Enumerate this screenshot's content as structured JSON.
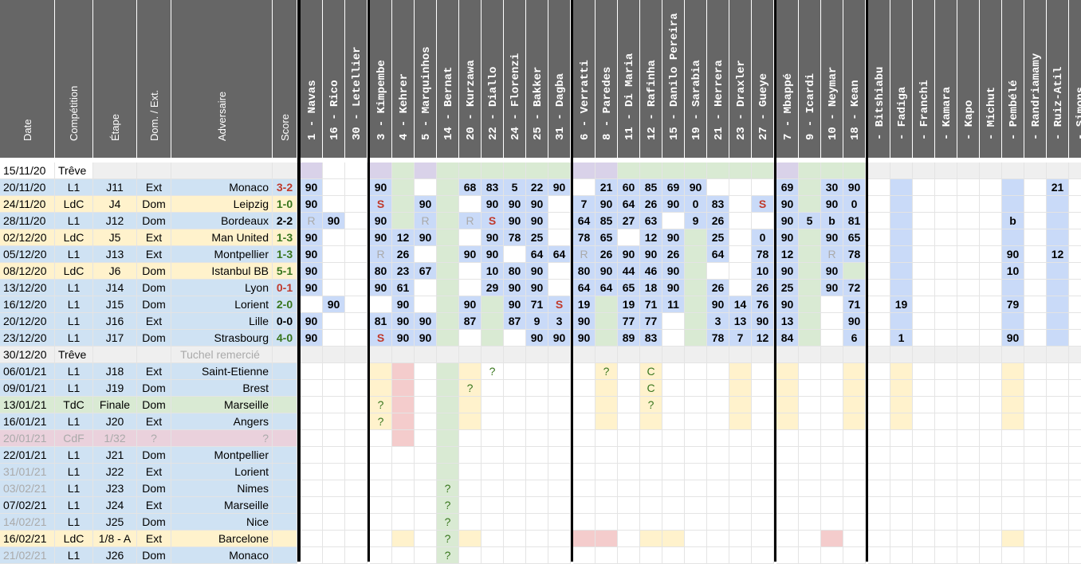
{
  "headers": {
    "info": [
      "Date",
      "Compétition",
      "Étape",
      "Dom. / Ext.",
      "Adversaire",
      "Score"
    ],
    "players": [
      "1 - Navas",
      "16 - Rico",
      "30 - Letellier",
      "3 - Kimpembe",
      "4 - Kehrer",
      "5 - Marquinhos",
      "14 - Bernat",
      "20 - Kurzawa",
      "22 - Diallo",
      "24 - Florenzi",
      "25 - Bakker",
      "31 - Dagba",
      "6 - Verratti",
      "8 - Paredes",
      "11 - Di Maria",
      "12 - Rafinha",
      "15 - Danilo Pereira",
      "19 - Sarabia",
      "21 - Herrera",
      "23 - Draxler",
      "27 - Gueye",
      "7 - Mbappé",
      "9 - Icardi",
      "10 - Neymar",
      "18 - Kean",
      "- Bitshiabu",
      "- Fadiga",
      "- Franchi",
      "- Kamara",
      "- Kapo",
      "- Michut",
      "- Pembélé",
      "- Randriamamy",
      "- Ruiz-Atil",
      "- Simons"
    ]
  },
  "colors": {
    "header_bg": "#666666",
    "blue": "#c9daf8",
    "lightblue": "#cfe2f3",
    "green": "#d9ead3",
    "yellow": "#fff2cc",
    "pink": "#ead1dc",
    "purple": "#d9d2e9",
    "red": "#f4cccc",
    "gray": "#efefef",
    "text_red": "#c0392b",
    "text_green": "#38761d",
    "text_yellow": "#ffd966",
    "text_gray": "#aaaaaa"
  },
  "rows": [
    {
      "date": "15/11/20",
      "comp": "Trêve",
      "stage": "",
      "home": "",
      "opp": "",
      "score": "",
      "style": "treve1"
    },
    {
      "date": "20/11/20",
      "comp": "L1",
      "stage": "J11",
      "home": "Ext",
      "opp": "Monaco",
      "score": "3-2",
      "score_color": "red",
      "style": "l1"
    },
    {
      "date": "24/11/20",
      "comp": "LdC",
      "stage": "J4",
      "home": "Dom",
      "opp": "Leipzig",
      "score": "1-0",
      "score_color": "green",
      "style": "ldc"
    },
    {
      "date": "28/11/20",
      "comp": "L1",
      "stage": "J12",
      "home": "Dom",
      "opp": "Bordeaux",
      "score": "2-2",
      "score_color": "black",
      "style": "l1"
    },
    {
      "date": "02/12/20",
      "comp": "LdC",
      "stage": "J5",
      "home": "Ext",
      "opp": "Man United",
      "score": "1-3",
      "score_color": "green",
      "style": "ldc"
    },
    {
      "date": "05/12/20",
      "comp": "L1",
      "stage": "J13",
      "home": "Ext",
      "opp": "Montpellier",
      "score": "1-3",
      "score_color": "green",
      "style": "l1"
    },
    {
      "date": "08/12/20",
      "comp": "LdC",
      "stage": "J6",
      "home": "Dom",
      "opp": "Istanbul BB",
      "score": "5-1",
      "score_color": "green",
      "style": "ldc"
    },
    {
      "date": "13/12/20",
      "comp": "L1",
      "stage": "J14",
      "home": "Dom",
      "opp": "Lyon",
      "score": "0-1",
      "score_color": "red",
      "style": "l1"
    },
    {
      "date": "16/12/20",
      "comp": "L1",
      "stage": "J15",
      "home": "Dom",
      "opp": "Lorient",
      "score": "2-0",
      "score_color": "green",
      "style": "l1"
    },
    {
      "date": "20/12/20",
      "comp": "L1",
      "stage": "J16",
      "home": "Ext",
      "opp": "Lille",
      "score": "0-0",
      "score_color": "black",
      "style": "l1"
    },
    {
      "date": "23/12/20",
      "comp": "L1",
      "stage": "J17",
      "home": "Dom",
      "opp": "Strasbourg",
      "score": "4-0",
      "score_color": "green",
      "style": "l1"
    },
    {
      "date": "30/12/20",
      "comp": "Trêve",
      "stage": "",
      "home": "",
      "opp": "Tuchel remercié",
      "score": "",
      "style": "treve2"
    },
    {
      "date": "06/01/21",
      "comp": "L1",
      "stage": "J18",
      "home": "Ext",
      "opp": "Saint-Etienne",
      "score": "",
      "style": "l1"
    },
    {
      "date": "09/01/21",
      "comp": "L1",
      "stage": "J19",
      "home": "Dom",
      "opp": "Brest",
      "score": "",
      "style": "l1"
    },
    {
      "date": "13/01/21",
      "comp": "TdC",
      "stage": "Finale",
      "home": "Dom",
      "opp": "Marseille",
      "score": "",
      "style": "tdc"
    },
    {
      "date": "16/01/21",
      "comp": "L1",
      "stage": "J20",
      "home": "Ext",
      "opp": "Angers",
      "score": "",
      "style": "l1"
    },
    {
      "date": "20/01/21",
      "comp": "CdF",
      "stage": "1/32",
      "home": "?",
      "opp": "?",
      "score": "",
      "style": "cdf"
    },
    {
      "date": "22/01/21",
      "comp": "L1",
      "stage": "J21",
      "home": "Dom",
      "opp": "Montpellier",
      "score": "",
      "style": "l1"
    },
    {
      "date": "31/01/21",
      "comp": "L1",
      "stage": "J22",
      "home": "Ext",
      "opp": "Lorient",
      "score": "",
      "style": "l1",
      "date_gray": true
    },
    {
      "date": "03/02/21",
      "comp": "L1",
      "stage": "J23",
      "home": "Dom",
      "opp": "Nimes",
      "score": "",
      "style": "l1",
      "date_gray": true
    },
    {
      "date": "07/02/21",
      "comp": "L1",
      "stage": "J24",
      "home": "Ext",
      "opp": "Marseille",
      "score": "",
      "style": "l1"
    },
    {
      "date": "14/02/21",
      "comp": "L1",
      "stage": "J25",
      "home": "Dom",
      "opp": "Nice",
      "score": "",
      "style": "l1",
      "date_gray": true
    },
    {
      "date": "16/02/21",
      "comp": "LdC",
      "stage": "1/8 - A",
      "home": "Ext",
      "opp": "Barcelone",
      "score": "",
      "style": "ldc"
    },
    {
      "date": "21/02/21",
      "comp": "L1",
      "stage": "J26",
      "home": "Dom",
      "opp": "Monaco",
      "score": "",
      "style": "l1",
      "date_gray": true
    }
  ],
  "player_cells": [
    [
      "",
      "",
      "",
      "",
      "",
      "",
      "",
      "",
      "",
      "",
      "",
      "",
      "",
      "",
      "",
      "",
      "",
      "",
      "",
      "",
      "",
      "",
      "",
      "",
      "",
      "",
      "",
      "",
      "",
      "",
      "",
      "",
      "",
      "",
      ""
    ],
    [
      "90",
      "",
      "",
      "90",
      "",
      "",
      "",
      "68",
      "83",
      "5",
      "22",
      "90",
      "",
      "21",
      "60",
      "85",
      "69",
      "90",
      "",
      "",
      "",
      "69",
      "",
      "30",
      "90",
      "",
      "",
      "",
      "",
      "",
      "",
      "",
      "",
      "21",
      ""
    ],
    [
      "90",
      "",
      "",
      "S",
      "",
      "90",
      "",
      "",
      "90",
      "90",
      "90",
      "",
      "7",
      "90",
      "64",
      "26",
      "90",
      "0",
      "83",
      "",
      "S",
      "90",
      "",
      "90",
      "0",
      "",
      "",
      "",
      "",
      "",
      "",
      "",
      "",
      "",
      ""
    ],
    [
      "R",
      "90",
      "",
      "90",
      "",
      "R",
      "",
      "R",
      "S",
      "90",
      "90",
      "",
      "64",
      "85",
      "27",
      "63",
      "",
      "9",
      "26",
      "",
      "",
      "90",
      "5",
      "b",
      "81",
      "",
      "",
      "",
      "",
      "",
      "",
      "b",
      "",
      "",
      ""
    ],
    [
      "90",
      "",
      "",
      "90",
      "12",
      "90",
      "",
      "",
      "90",
      "78",
      "25",
      "",
      "78",
      "65",
      "",
      "12",
      "90",
      "",
      "25",
      "",
      "0",
      "90",
      "",
      "90",
      "65",
      "",
      "",
      "",
      "",
      "",
      "",
      "",
      "",
      "",
      ""
    ],
    [
      "90",
      "",
      "",
      "R",
      "26",
      "",
      "",
      "90",
      "90",
      "",
      "64",
      "64",
      "R",
      "26",
      "90",
      "90",
      "26",
      "",
      "64",
      "",
      "78",
      "12",
      "",
      "R",
      "78",
      "",
      "",
      "",
      "",
      "",
      "",
      "90",
      "",
      "12",
      ""
    ],
    [
      "90",
      "",
      "",
      "80",
      "23",
      "67",
      "",
      "",
      "10",
      "80",
      "90",
      "",
      "80",
      "90",
      "44",
      "46",
      "90",
      "",
      "",
      "",
      "10",
      "90",
      "",
      "90",
      "",
      "",
      "",
      "",
      "",
      "",
      "",
      "10",
      "",
      "",
      ""
    ],
    [
      "90",
      "",
      "",
      "90",
      "61",
      "",
      "",
      "",
      "29",
      "90",
      "90",
      "",
      "64",
      "64",
      "65",
      "18",
      "90",
      "",
      "26",
      "",
      "26",
      "25",
      "",
      "90",
      "72",
      "",
      "",
      "",
      "",
      "",
      "",
      "",
      "",
      "",
      ""
    ],
    [
      "",
      "90",
      "",
      "",
      "90",
      "",
      "",
      "90",
      "",
      "90",
      "71",
      "S",
      "19",
      "",
      "19",
      "71",
      "11",
      "",
      "90",
      "14",
      "76",
      "90",
      "",
      "",
      "71",
      "",
      "19",
      "",
      "",
      "",
      "",
      "79",
      "",
      "",
      ""
    ],
    [
      "90",
      "",
      "",
      "81",
      "90",
      "90",
      "",
      "87",
      "",
      "87",
      "9",
      "3",
      "90",
      "",
      "77",
      "77",
      "",
      "",
      "3",
      "13",
      "90",
      "13",
      "",
      "",
      "90",
      "",
      "",
      "",
      "",
      "",
      "",
      "",
      "",
      "",
      ""
    ],
    [
      "90",
      "",
      "",
      "S",
      "90",
      "90",
      "",
      "",
      "",
      "",
      "90",
      "90",
      "90",
      "",
      "89",
      "83",
      "",
      "",
      "78",
      "7",
      "12",
      "84",
      "",
      "",
      "6",
      "",
      "1",
      "",
      "",
      "",
      "",
      "90",
      "",
      "",
      ""
    ],
    [
      "",
      "",
      "",
      "",
      "",
      "",
      "",
      "",
      "",
      "",
      "",
      "",
      "",
      "",
      "",
      "",
      "",
      "",
      "",
      "",
      "",
      "",
      "",
      "",
      "",
      "",
      "",
      "",
      "",
      "",
      "",
      "",
      "",
      "",
      ""
    ],
    [
      "",
      "",
      "",
      "",
      "",
      "",
      "",
      "",
      "?",
      "",
      "",
      "",
      "",
      "?",
      "",
      "C",
      "",
      "",
      "",
      "",
      "",
      "",
      "",
      "",
      "",
      "",
      "",
      "",
      "",
      "",
      "",
      "",
      "",
      "",
      ""
    ],
    [
      "",
      "",
      "",
      "",
      "",
      "",
      "",
      "?",
      "",
      "",
      "",
      "",
      "",
      "",
      "",
      "C",
      "",
      "",
      "",
      "",
      "",
      "",
      "",
      "",
      "",
      "",
      "",
      "",
      "",
      "",
      "",
      "",
      "",
      "",
      ""
    ],
    [
      "",
      "",
      "",
      "?",
      "",
      "",
      "",
      "",
      "",
      "",
      "",
      "",
      "",
      "",
      "",
      "?",
      "",
      "",
      "",
      "",
      "",
      "",
      "",
      "",
      "",
      "",
      "",
      "",
      "",
      "",
      "",
      "",
      "",
      "",
      ""
    ],
    [
      "",
      "",
      "",
      "?",
      "",
      "",
      "",
      "",
      "",
      "",
      "",
      "",
      "",
      "",
      "",
      "",
      "",
      "",
      "",
      "",
      "",
      "",
      "",
      "",
      "",
      "",
      "",
      "",
      "",
      "",
      "",
      "",
      "",
      "",
      ""
    ],
    [
      "",
      "",
      "",
      "",
      "",
      "",
      "",
      "",
      "",
      "",
      "",
      "",
      "",
      "",
      "",
      "",
      "",
      "",
      "",
      "",
      "",
      "",
      "",
      "",
      "",
      "",
      "",
      "",
      "",
      "",
      "",
      "",
      "",
      "",
      ""
    ],
    [
      "",
      "",
      "",
      "",
      "",
      "",
      "",
      "",
      "",
      "",
      "",
      "",
      "",
      "",
      "",
      "",
      "",
      "",
      "",
      "",
      "",
      "",
      "",
      "",
      "",
      "",
      "",
      "",
      "",
      "",
      "",
      "",
      "",
      "",
      ""
    ],
    [
      "",
      "",
      "",
      "",
      "",
      "",
      "",
      "",
      "",
      "",
      "",
      "",
      "",
      "",
      "",
      "",
      "",
      "",
      "",
      "",
      "",
      "",
      "",
      "",
      "",
      "",
      "",
      "",
      "",
      "",
      "",
      "",
      "",
      "",
      ""
    ],
    [
      "",
      "",
      "",
      "",
      "",
      "",
      "?",
      "",
      "",
      "",
      "",
      "",
      "",
      "",
      "",
      "",
      "",
      "",
      "",
      "",
      "",
      "",
      "",
      "",
      "",
      "",
      "",
      "",
      "",
      "",
      "",
      "",
      "",
      "",
      ""
    ],
    [
      "",
      "",
      "",
      "",
      "",
      "",
      "?",
      "",
      "",
      "",
      "",
      "",
      "",
      "",
      "",
      "",
      "",
      "",
      "",
      "",
      "",
      "",
      "",
      "",
      "",
      "",
      "",
      "",
      "",
      "",
      "",
      "",
      "",
      "",
      ""
    ],
    [
      "",
      "",
      "",
      "",
      "",
      "",
      "?",
      "",
      "",
      "",
      "",
      "",
      "",
      "",
      "",
      "",
      "",
      "",
      "",
      "",
      "",
      "",
      "",
      "",
      "",
      "",
      "",
      "",
      "",
      "",
      "",
      "",
      "",
      "",
      ""
    ],
    [
      "",
      "",
      "",
      "",
      "",
      "",
      "?",
      "",
      "",
      "",
      "",
      "",
      "",
      "",
      "",
      "",
      "",
      "",
      "",
      "",
      "",
      "",
      "",
      "",
      "",
      "",
      "",
      "",
      "",
      "",
      "",
      "",
      "",
      "",
      ""
    ],
    [
      "",
      "",
      "",
      "",
      "",
      "",
      "?",
      "",
      "",
      "",
      "",
      "",
      "",
      "",
      "",
      "",
      "",
      "",
      "",
      "",
      "",
      "",
      "",
      "",
      "",
      "",
      "",
      "",
      "",
      "",
      "",
      "",
      "",
      "",
      ""
    ]
  ]
}
